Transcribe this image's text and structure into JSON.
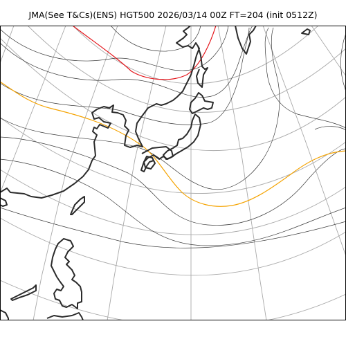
{
  "header": {
    "title": "JMA(See T&Cs)(ENS) HGT500 2026/03/14 00Z FT=204 (init 0512Z)"
  },
  "map": {
    "projection": "polar stereographic",
    "colors": {
      "background": "#ffffff",
      "graticule": "#a9a9a9",
      "coastline": "#2b2b2b",
      "contour": "#3a3a3a",
      "contour_warm": "#f5a300",
      "contour_cold": "#e4141a"
    },
    "highlighted_contours": [
      {
        "name": "orange-contour",
        "color": "#f5a300"
      },
      {
        "name": "red-contour",
        "color": "#e4141a"
      }
    ]
  }
}
